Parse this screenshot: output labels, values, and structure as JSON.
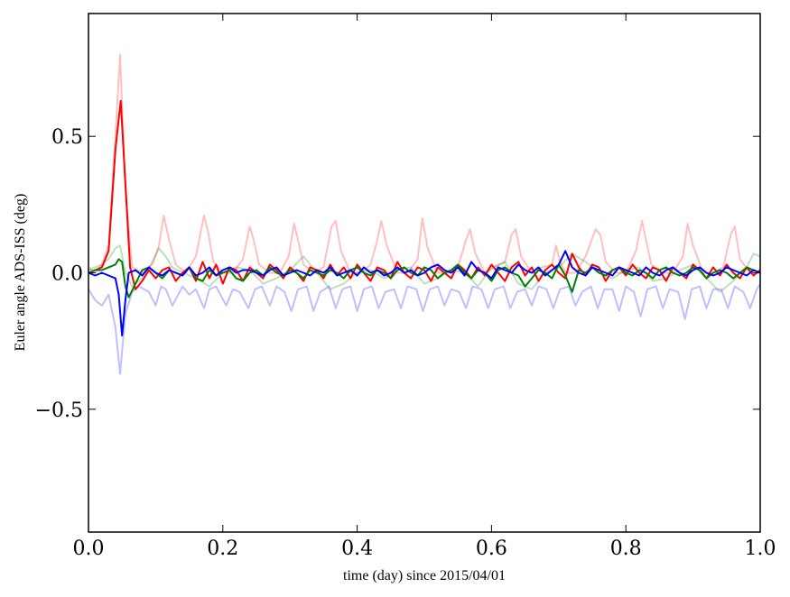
{
  "chart_data": {
    "type": "line",
    "title": "",
    "xlabel": "time (day) since 2015/04/01",
    "ylabel": "Euler angle ADS-ISS (deg)",
    "xlim": [
      0.0,
      1.0
    ],
    "ylim": [
      -0.95,
      0.95
    ],
    "xticks": [
      0.0,
      0.2,
      0.4,
      0.6,
      0.8,
      1.0
    ],
    "xtick_labels": [
      "0.0",
      "0.2",
      "0.4",
      "0.6",
      "0.8",
      "1.0"
    ],
    "yticks": [
      -0.5,
      0.0,
      0.5
    ],
    "ytick_labels": [
      "−0.5",
      "0.0",
      "0.5"
    ],
    "grid": false,
    "legend": "none",
    "series": [
      {
        "color": "#ff0000",
        "opacity": 0.25,
        "style": "raw",
        "x": [
          0.0,
          0.01,
          0.02,
          0.03,
          0.04,
          0.047,
          0.055,
          0.065,
          0.08,
          0.095,
          0.105,
          0.112,
          0.12,
          0.13,
          0.145,
          0.16,
          0.172,
          0.178,
          0.186,
          0.2,
          0.215,
          0.23,
          0.24,
          0.246,
          0.254,
          0.27,
          0.285,
          0.298,
          0.306,
          0.312,
          0.32,
          0.335,
          0.35,
          0.362,
          0.368,
          0.376,
          0.39,
          0.405,
          0.42,
          0.43,
          0.436,
          0.444,
          0.46,
          0.475,
          0.49,
          0.497,
          0.505,
          0.52,
          0.535,
          0.55,
          0.562,
          0.568,
          0.576,
          0.59,
          0.605,
          0.62,
          0.63,
          0.636,
          0.644,
          0.66,
          0.675,
          0.69,
          0.696,
          0.702,
          0.71,
          0.725,
          0.74,
          0.755,
          0.762,
          0.77,
          0.785,
          0.8,
          0.815,
          0.824,
          0.83,
          0.838,
          0.855,
          0.87,
          0.885,
          0.892,
          0.9,
          0.915,
          0.93,
          0.945,
          0.956,
          0.962,
          0.97,
          0.985,
          1.0
        ],
        "y": [
          0.02,
          0.0,
          0.03,
          0.1,
          0.5,
          0.8,
          0.3,
          0.02,
          0.0,
          0.03,
          0.1,
          0.21,
          0.12,
          0.03,
          0.0,
          0.06,
          0.21,
          0.15,
          0.04,
          0.0,
          0.0,
          0.05,
          0.17,
          0.12,
          0.03,
          0.0,
          0.0,
          0.06,
          0.18,
          0.12,
          0.03,
          0.0,
          0.02,
          0.17,
          0.19,
          0.08,
          0.0,
          0.0,
          0.03,
          0.12,
          0.19,
          0.1,
          0.0,
          0.0,
          0.05,
          0.2,
          0.09,
          0.0,
          0.0,
          0.02,
          0.12,
          0.16,
          0.07,
          0.0,
          0.02,
          0.04,
          0.14,
          0.16,
          0.06,
          0.0,
          0.02,
          0.03,
          0.1,
          0.04,
          0.0,
          0.0,
          0.06,
          0.16,
          0.14,
          0.04,
          0.0,
          0.0,
          0.08,
          0.19,
          0.12,
          0.03,
          0.0,
          0.0,
          0.06,
          0.18,
          0.1,
          0.0,
          0.0,
          0.02,
          0.14,
          0.17,
          0.05,
          0.0,
          0.0
        ]
      },
      {
        "color": "#008000",
        "opacity": 0.25,
        "style": "raw",
        "x": [
          0.0,
          0.01,
          0.02,
          0.03,
          0.04,
          0.047,
          0.055,
          0.065,
          0.08,
          0.095,
          0.105,
          0.115,
          0.125,
          0.14,
          0.16,
          0.18,
          0.2,
          0.22,
          0.24,
          0.26,
          0.28,
          0.3,
          0.32,
          0.34,
          0.36,
          0.38,
          0.4,
          0.42,
          0.44,
          0.46,
          0.48,
          0.5,
          0.52,
          0.54,
          0.56,
          0.58,
          0.6,
          0.62,
          0.64,
          0.66,
          0.68,
          0.7,
          0.72,
          0.74,
          0.76,
          0.78,
          0.8,
          0.82,
          0.84,
          0.86,
          0.88,
          0.9,
          0.92,
          0.94,
          0.96,
          0.98,
          0.99,
          1.0
        ],
        "y": [
          0.01,
          0.02,
          0.03,
          0.05,
          0.09,
          0.1,
          0.0,
          -0.05,
          -0.02,
          0.04,
          0.09,
          0.06,
          0.02,
          0.0,
          -0.02,
          -0.05,
          0.0,
          0.02,
          0.01,
          -0.04,
          -0.02,
          0.01,
          0.06,
          0.0,
          -0.06,
          -0.04,
          0.0,
          0.01,
          -0.02,
          0.01,
          0.02,
          -0.04,
          -0.02,
          0.01,
          0.0,
          -0.05,
          0.02,
          0.04,
          -0.04,
          -0.06,
          0.0,
          0.02,
          0.07,
          0.04,
          0.0,
          -0.02,
          0.01,
          0.02,
          -0.03,
          -0.02,
          0.01,
          0.03,
          -0.02,
          -0.07,
          -0.03,
          0.02,
          0.07,
          0.06
        ]
      },
      {
        "color": "#0000ff",
        "opacity": 0.25,
        "style": "raw",
        "x": [
          0.0,
          0.01,
          0.02,
          0.03,
          0.04,
          0.047,
          0.055,
          0.065,
          0.075,
          0.09,
          0.1,
          0.108,
          0.115,
          0.125,
          0.14,
          0.15,
          0.16,
          0.172,
          0.18,
          0.19,
          0.205,
          0.215,
          0.225,
          0.238,
          0.248,
          0.258,
          0.27,
          0.28,
          0.292,
          0.302,
          0.312,
          0.325,
          0.335,
          0.345,
          0.358,
          0.368,
          0.378,
          0.39,
          0.4,
          0.41,
          0.422,
          0.432,
          0.442,
          0.455,
          0.465,
          0.475,
          0.488,
          0.498,
          0.508,
          0.52,
          0.53,
          0.54,
          0.552,
          0.562,
          0.572,
          0.585,
          0.595,
          0.605,
          0.618,
          0.628,
          0.638,
          0.65,
          0.66,
          0.67,
          0.682,
          0.692,
          0.702,
          0.715,
          0.725,
          0.735,
          0.748,
          0.758,
          0.768,
          0.78,
          0.79,
          0.8,
          0.812,
          0.822,
          0.832,
          0.845,
          0.855,
          0.865,
          0.878,
          0.888,
          0.898,
          0.91,
          0.92,
          0.93,
          0.942,
          0.952,
          0.962,
          0.975,
          0.985,
          0.995,
          1.0
        ],
        "y": [
          -0.06,
          -0.1,
          -0.12,
          -0.08,
          -0.2,
          -0.37,
          -0.15,
          -0.07,
          -0.05,
          -0.07,
          -0.12,
          -0.05,
          -0.06,
          -0.12,
          -0.05,
          -0.08,
          -0.06,
          -0.13,
          -0.06,
          -0.05,
          -0.12,
          -0.06,
          -0.07,
          -0.13,
          -0.06,
          -0.05,
          -0.12,
          -0.05,
          -0.07,
          -0.14,
          -0.06,
          -0.05,
          -0.14,
          -0.07,
          -0.05,
          -0.13,
          -0.06,
          -0.05,
          -0.14,
          -0.06,
          -0.05,
          -0.13,
          -0.07,
          -0.06,
          -0.13,
          -0.05,
          -0.06,
          -0.14,
          -0.06,
          -0.05,
          -0.12,
          -0.06,
          -0.07,
          -0.13,
          -0.05,
          -0.06,
          -0.13,
          -0.06,
          -0.05,
          -0.13,
          -0.07,
          -0.06,
          -0.12,
          -0.05,
          -0.06,
          -0.13,
          -0.06,
          -0.05,
          -0.12,
          -0.07,
          -0.05,
          -0.13,
          -0.06,
          -0.06,
          -0.14,
          -0.05,
          -0.07,
          -0.16,
          -0.06,
          -0.05,
          -0.13,
          -0.06,
          -0.07,
          -0.17,
          -0.06,
          -0.05,
          -0.13,
          -0.06,
          -0.06,
          -0.13,
          -0.05,
          -0.07,
          -0.13,
          -0.06,
          -0.04
        ]
      },
      {
        "color": "#ff0000",
        "opacity": 1,
        "style": "smoothed",
        "x": [
          0.0,
          0.01,
          0.02,
          0.03,
          0.04,
          0.048,
          0.056,
          0.062,
          0.07,
          0.08,
          0.09,
          0.1,
          0.11,
          0.12,
          0.13,
          0.14,
          0.15,
          0.16,
          0.17,
          0.18,
          0.19,
          0.2,
          0.21,
          0.22,
          0.23,
          0.24,
          0.25,
          0.26,
          0.27,
          0.28,
          0.29,
          0.3,
          0.31,
          0.32,
          0.33,
          0.34,
          0.35,
          0.36,
          0.37,
          0.38,
          0.39,
          0.4,
          0.41,
          0.42,
          0.43,
          0.44,
          0.45,
          0.46,
          0.47,
          0.48,
          0.49,
          0.5,
          0.51,
          0.52,
          0.53,
          0.54,
          0.55,
          0.56,
          0.57,
          0.58,
          0.59,
          0.6,
          0.61,
          0.62,
          0.63,
          0.64,
          0.65,
          0.66,
          0.67,
          0.68,
          0.69,
          0.7,
          0.71,
          0.72,
          0.73,
          0.74,
          0.75,
          0.76,
          0.77,
          0.78,
          0.79,
          0.8,
          0.81,
          0.82,
          0.83,
          0.84,
          0.85,
          0.86,
          0.87,
          0.88,
          0.89,
          0.9,
          0.91,
          0.92,
          0.93,
          0.94,
          0.95,
          0.96,
          0.97,
          0.98,
          0.99,
          1.0
        ],
        "y": [
          0.0,
          0.01,
          0.02,
          0.08,
          0.45,
          0.63,
          0.28,
          0.02,
          -0.06,
          -0.03,
          0.01,
          -0.02,
          0.01,
          0.02,
          -0.03,
          0.0,
          0.02,
          -0.03,
          0.04,
          -0.02,
          0.03,
          -0.04,
          0.02,
          0.01,
          -0.03,
          0.02,
          0.0,
          -0.02,
          0.03,
          0.01,
          -0.02,
          0.02,
          0.0,
          -0.03,
          0.02,
          0.01,
          -0.02,
          0.03,
          -0.01,
          0.02,
          -0.02,
          0.03,
          0.0,
          -0.03,
          0.02,
          0.01,
          -0.02,
          0.04,
          0.0,
          -0.02,
          0.02,
          0.01,
          -0.03,
          0.02,
          0.0,
          -0.02,
          0.03,
          0.01,
          -0.02,
          0.02,
          -0.01,
          0.03,
          0.0,
          -0.03,
          0.02,
          0.04,
          -0.01,
          0.02,
          -0.03,
          0.01,
          0.03,
          0.0,
          -0.02,
          0.07,
          0.02,
          -0.01,
          0.03,
          0.02,
          -0.03,
          0.01,
          0.02,
          -0.01,
          0.03,
          0.0,
          -0.02,
          0.02,
          0.01,
          -0.03,
          0.02,
          0.0,
          -0.02,
          0.03,
          0.01,
          -0.02,
          0.02,
          -0.01,
          0.03,
          0.0,
          -0.02,
          0.02,
          -0.01,
          0.01
        ]
      },
      {
        "color": "#008000",
        "opacity": 1,
        "style": "smoothed",
        "x": [
          0.0,
          0.01,
          0.02,
          0.03,
          0.04,
          0.045,
          0.05,
          0.055,
          0.06,
          0.07,
          0.08,
          0.09,
          0.1,
          0.11,
          0.12,
          0.13,
          0.14,
          0.15,
          0.16,
          0.17,
          0.18,
          0.19,
          0.2,
          0.21,
          0.22,
          0.23,
          0.24,
          0.25,
          0.26,
          0.27,
          0.28,
          0.29,
          0.3,
          0.31,
          0.32,
          0.33,
          0.34,
          0.35,
          0.36,
          0.37,
          0.38,
          0.39,
          0.4,
          0.41,
          0.42,
          0.43,
          0.44,
          0.45,
          0.46,
          0.47,
          0.48,
          0.49,
          0.5,
          0.51,
          0.52,
          0.53,
          0.54,
          0.55,
          0.56,
          0.57,
          0.58,
          0.59,
          0.6,
          0.61,
          0.62,
          0.63,
          0.64,
          0.65,
          0.66,
          0.67,
          0.68,
          0.69,
          0.7,
          0.71,
          0.72,
          0.73,
          0.74,
          0.75,
          0.76,
          0.77,
          0.78,
          0.79,
          0.8,
          0.81,
          0.82,
          0.83,
          0.84,
          0.85,
          0.86,
          0.87,
          0.88,
          0.89,
          0.9,
          0.91,
          0.92,
          0.93,
          0.94,
          0.95,
          0.96,
          0.97,
          0.98,
          0.99,
          1.0
        ],
        "y": [
          0.0,
          0.01,
          0.01,
          0.02,
          0.03,
          0.05,
          0.04,
          -0.05,
          -0.09,
          -0.04,
          0.01,
          0.02,
          0.0,
          -0.02,
          0.01,
          0.0,
          -0.01,
          0.02,
          -0.02,
          -0.03,
          0.01,
          -0.01,
          0.0,
          0.01,
          -0.02,
          -0.03,
          0.0,
          0.01,
          -0.01,
          0.02,
          0.0,
          -0.01,
          0.01,
          0.0,
          -0.02,
          0.01,
          0.0,
          -0.01,
          0.01,
          0.0,
          -0.02,
          0.01,
          0.02,
          0.0,
          -0.01,
          0.01,
          0.0,
          -0.02,
          0.01,
          0.02,
          0.0,
          -0.01,
          0.02,
          0.01,
          -0.02,
          0.0,
          0.01,
          0.03,
          0.0,
          -0.02,
          0.01,
          0.0,
          -0.03,
          0.01,
          0.02,
          0.0,
          -0.01,
          -0.05,
          -0.02,
          0.01,
          0.0,
          -0.02,
          0.03,
          -0.01,
          -0.07,
          0.01,
          0.0,
          0.02,
          0.0,
          -0.01,
          0.01,
          0.02,
          0.0,
          -0.01,
          0.01,
          0.0,
          -0.02,
          0.01,
          0.02,
          0.0,
          -0.01,
          0.0,
          0.02,
          0.01,
          -0.02,
          0.0,
          0.01,
          0.0,
          -0.02,
          0.0,
          0.02,
          0.01,
          0.0
        ]
      },
      {
        "color": "#0000ff",
        "opacity": 1,
        "style": "smoothed",
        "x": [
          0.0,
          0.01,
          0.02,
          0.03,
          0.04,
          0.045,
          0.05,
          0.055,
          0.06,
          0.07,
          0.08,
          0.09,
          0.1,
          0.11,
          0.12,
          0.13,
          0.14,
          0.15,
          0.16,
          0.17,
          0.18,
          0.19,
          0.2,
          0.21,
          0.22,
          0.23,
          0.24,
          0.25,
          0.26,
          0.27,
          0.28,
          0.29,
          0.3,
          0.31,
          0.32,
          0.33,
          0.34,
          0.35,
          0.36,
          0.37,
          0.38,
          0.39,
          0.4,
          0.41,
          0.42,
          0.43,
          0.44,
          0.45,
          0.46,
          0.47,
          0.48,
          0.49,
          0.5,
          0.51,
          0.52,
          0.53,
          0.54,
          0.55,
          0.56,
          0.57,
          0.58,
          0.59,
          0.6,
          0.61,
          0.62,
          0.63,
          0.64,
          0.65,
          0.66,
          0.67,
          0.68,
          0.69,
          0.7,
          0.71,
          0.72,
          0.73,
          0.74,
          0.75,
          0.76,
          0.77,
          0.78,
          0.79,
          0.8,
          0.81,
          0.82,
          0.83,
          0.84,
          0.85,
          0.86,
          0.87,
          0.88,
          0.89,
          0.9,
          0.91,
          0.92,
          0.93,
          0.94,
          0.95,
          0.96,
          0.97,
          0.98,
          0.99,
          1.0
        ],
        "y": [
          0.0,
          -0.01,
          0.0,
          -0.01,
          -0.02,
          -0.08,
          -0.23,
          -0.1,
          0.0,
          0.01,
          -0.01,
          0.02,
          0.0,
          -0.01,
          0.01,
          0.0,
          -0.01,
          0.02,
          -0.01,
          0.0,
          0.02,
          -0.01,
          0.01,
          0.02,
          0.0,
          0.01,
          0.01,
          0.0,
          -0.01,
          0.01,
          0.02,
          -0.01,
          0.0,
          0.01,
          0.0,
          -0.01,
          0.01,
          0.0,
          0.02,
          -0.01,
          0.0,
          0.01,
          -0.01,
          0.02,
          0.0,
          0.01,
          -0.01,
          0.0,
          0.02,
          0.0,
          0.01,
          -0.01,
          0.0,
          0.02,
          0.03,
          0.01,
          0.0,
          0.02,
          -0.01,
          0.04,
          0.01,
          0.0,
          -0.02,
          0.02,
          0.01,
          0.0,
          0.03,
          0.01,
          0.0,
          0.02,
          -0.01,
          0.01,
          0.03,
          0.08,
          0.02,
          0.0,
          -0.01,
          0.02,
          0.01,
          0.0,
          -0.01,
          0.02,
          0.01,
          0.0,
          -0.01,
          0.02,
          0.0,
          -0.01,
          0.01,
          0.02,
          0.0,
          -0.01,
          0.01,
          0.02,
          0.0,
          -0.01,
          0.0,
          0.02,
          0.01,
          0.0,
          -0.01,
          0.01,
          0.0
        ]
      }
    ]
  }
}
